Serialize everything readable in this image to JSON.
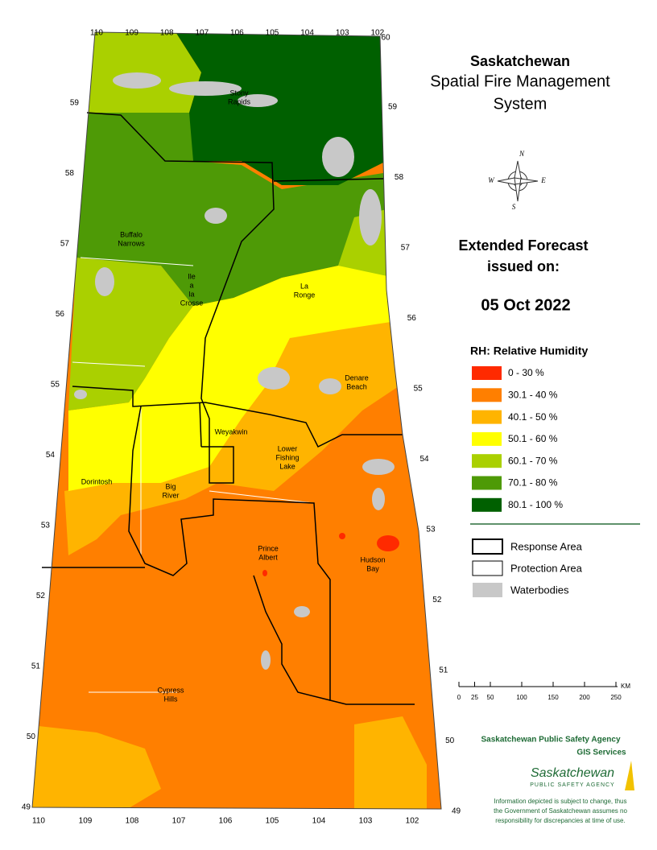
{
  "title_lines": [
    "Saskatchewan",
    "Spatial Fire Management",
    "System"
  ],
  "forecast": {
    "heading": [
      "Extended Forecast",
      "issued on:"
    ],
    "date": "05 Oct 2022"
  },
  "compass": {
    "n": "N",
    "e": "E",
    "s": "S",
    "w": "W"
  },
  "legend": {
    "title": "RH: Relative Humidity",
    "classes": [
      {
        "label": "0 - 30 %",
        "color": "#ff2a00"
      },
      {
        "label": "30.1 - 40 %",
        "color": "#ff7f00"
      },
      {
        "label": "40.1 - 50 %",
        "color": "#ffb400"
      },
      {
        "label": "50.1 - 60 %",
        "color": "#ffff00"
      },
      {
        "label": "60.1 - 70 %",
        "color": "#aad000"
      },
      {
        "label": "70.1 - 80 %",
        "color": "#4e9a06"
      },
      {
        "label": "80.1 - 100 %",
        "color": "#006000"
      }
    ],
    "layers": [
      {
        "label": "Response Area"
      },
      {
        "label": "Protection Area"
      },
      {
        "label": "Waterbodies"
      }
    ]
  },
  "scale": {
    "ticks": [
      0,
      25,
      50,
      100,
      150,
      200,
      250
    ],
    "unit": "KM"
  },
  "graticule": {
    "top": [
      110,
      109,
      108,
      107,
      106,
      105,
      104,
      103,
      102
    ],
    "top_right": 60,
    "left": [
      59,
      58,
      57,
      56,
      55,
      54,
      53,
      52,
      51,
      50,
      49
    ],
    "right": [
      59,
      58,
      57,
      56,
      55,
      54,
      53,
      52,
      51,
      50,
      49
    ],
    "bottom": [
      110,
      109,
      108,
      107,
      106,
      105,
      104,
      103,
      102
    ]
  },
  "places": [
    {
      "lines": [
        "Stony",
        "Rapids"
      ]
    },
    {
      "lines": [
        "Buffalo",
        "Narrows"
      ]
    },
    {
      "lines": [
        "Ile",
        "a",
        "la",
        "Crosse"
      ]
    },
    {
      "lines": [
        "La",
        "Ronge"
      ]
    },
    {
      "lines": [
        "Denare",
        "Beach"
      ]
    },
    {
      "lines": [
        "Weyakwin"
      ]
    },
    {
      "lines": [
        "Lower",
        "Fishing",
        "Lake"
      ]
    },
    {
      "lines": [
        "Dorintosh"
      ]
    },
    {
      "lines": [
        "Big",
        "River"
      ]
    },
    {
      "lines": [
        "Prince",
        "Albert"
      ]
    },
    {
      "lines": [
        "Hudson",
        "Bay"
      ]
    },
    {
      "lines": [
        "Cypress",
        "Hills"
      ]
    }
  ],
  "footer": {
    "agency": "Saskatchewan Public Safety Agency",
    "unit": "GIS Services",
    "logo": "Saskatchewan",
    "logo_sub": "PUBLIC SAFETY AGENCY",
    "disclaimer": [
      "Information depicted is subject to change, thus",
      "the Government of Saskatchewan assumes no",
      "responsibility for discrepancies at time of use."
    ]
  }
}
